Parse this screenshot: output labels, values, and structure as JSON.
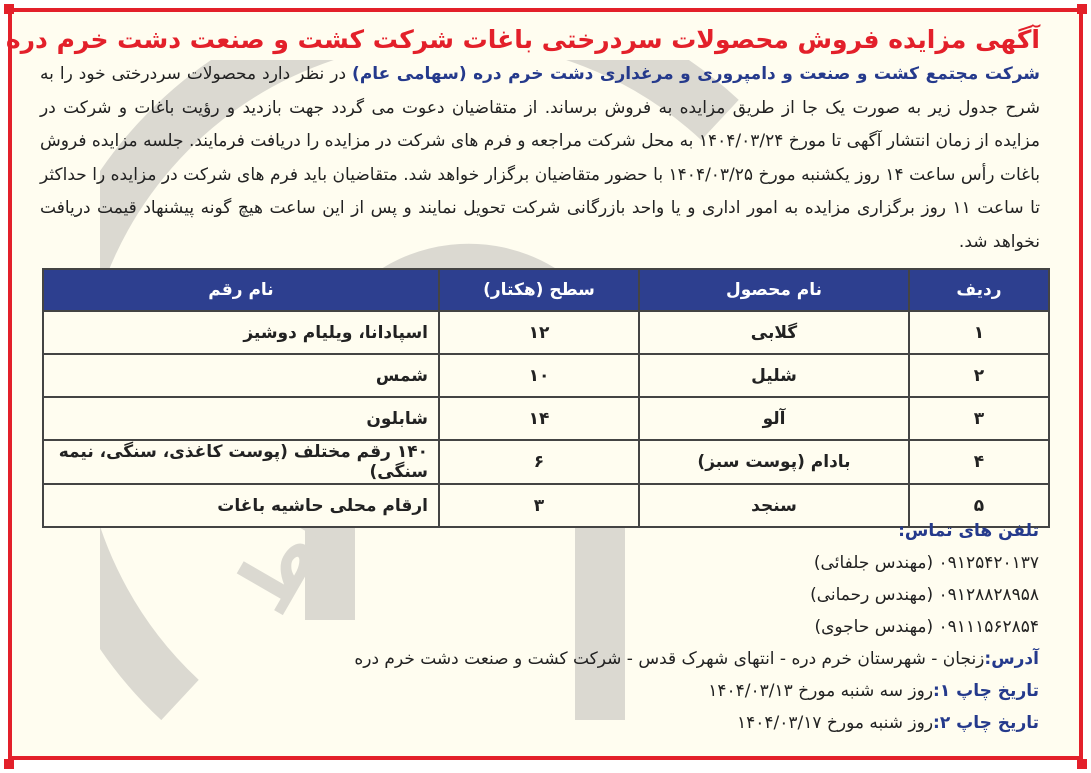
{
  "title": "آگهی مزایده فروش محصولات سردرختی باغات شرکت کشت و صنعت دشت خرم دره",
  "intro": {
    "company": "شرکت مجتمع کشت و صنعت و دامپروری و مرغداری دشت خرم دره (سهامی عام)",
    "body": "در نظر دارد محصولات سردرختی خود را به شرح جدول زیر به صورت یک جا از طریق مزایده به فروش برساند. از متقاضیان دعوت می گردد جهت بازدید و رؤیت باغات و شرکت در مزایده از زمان انتشار آگهی تا مورخ ۱۴۰۴/۰۳/۲۴ به محل شرکت مراجعه و فرم های شرکت در مزایده را دریافت فرمایند. جلسه مزایده فروش باغات رأس ساعت ۱۴ روز یکشنبه مورخ ۱۴۰۴/۰۳/۲۵ با حضور متقاضیان برگزار خواهد شد. متقاضیان باید فرم های شرکت در مزایده را حداکثر تا ساعت ۱۱ روز برگزاری مزایده به امور اداری و یا واحد بازرگانی شرکت تحویل نمایند و پس از این ساعت هیچ گونه پیشنهاد قیمت دریافت نخواهد شد."
  },
  "table": {
    "headers": [
      "ردیف",
      "نام محصول",
      "سطح (هکتار)",
      "نام رقم"
    ],
    "rows": [
      [
        "۱",
        "گلابی",
        "۱۲",
        "اسپادانا، ویلیام دوشیز"
      ],
      [
        "۲",
        "شلیل",
        "۱۰",
        "شمس"
      ],
      [
        "۳",
        "آلو",
        "۱۴",
        "شابلون"
      ],
      [
        "۴",
        "بادام (پوست سبز)",
        "۶",
        "۱۴۰ رقم مختلف (پوست کاغذی، سنگی، نیمه سنگی)"
      ],
      [
        "۵",
        "سنجد",
        "۳",
        "ارقام محلی حاشیه باغات"
      ]
    ]
  },
  "contact": {
    "label": "تلفن های تماس:",
    "phones": [
      "۰۹۱۲۵۴۲۰۱۳۷ (مهندس جلفائی)",
      "۰۹۱۲۸۸۲۸۹۵۸ (مهندس رحمانی)",
      "۰۹۱۱۱۵۶۲۸۵۴ (مهندس حاجوی)"
    ]
  },
  "address": {
    "label": "آدرس:",
    "value": "زنجان - شهرستان خرم دره - انتهای شهرک قدس - شرکت کشت و صنعت دشت خرم دره"
  },
  "print1": {
    "label": "تاریخ چاپ ۱:",
    "value": "روز سه شنبه مورخ ۱۴۰۴/۰۳/۱۳"
  },
  "print2": {
    "label": "تاریخ چاپ ۲:",
    "value": "روز شنبه مورخ ۱۴۰۴/۰۳/۱۷"
  },
  "watermark": "ارتباط",
  "colors": {
    "border": "#e3202a",
    "title": "#e3202a",
    "accent": "#253a8c",
    "table_header": "#2d3f8f",
    "background": "#fffdf0"
  }
}
